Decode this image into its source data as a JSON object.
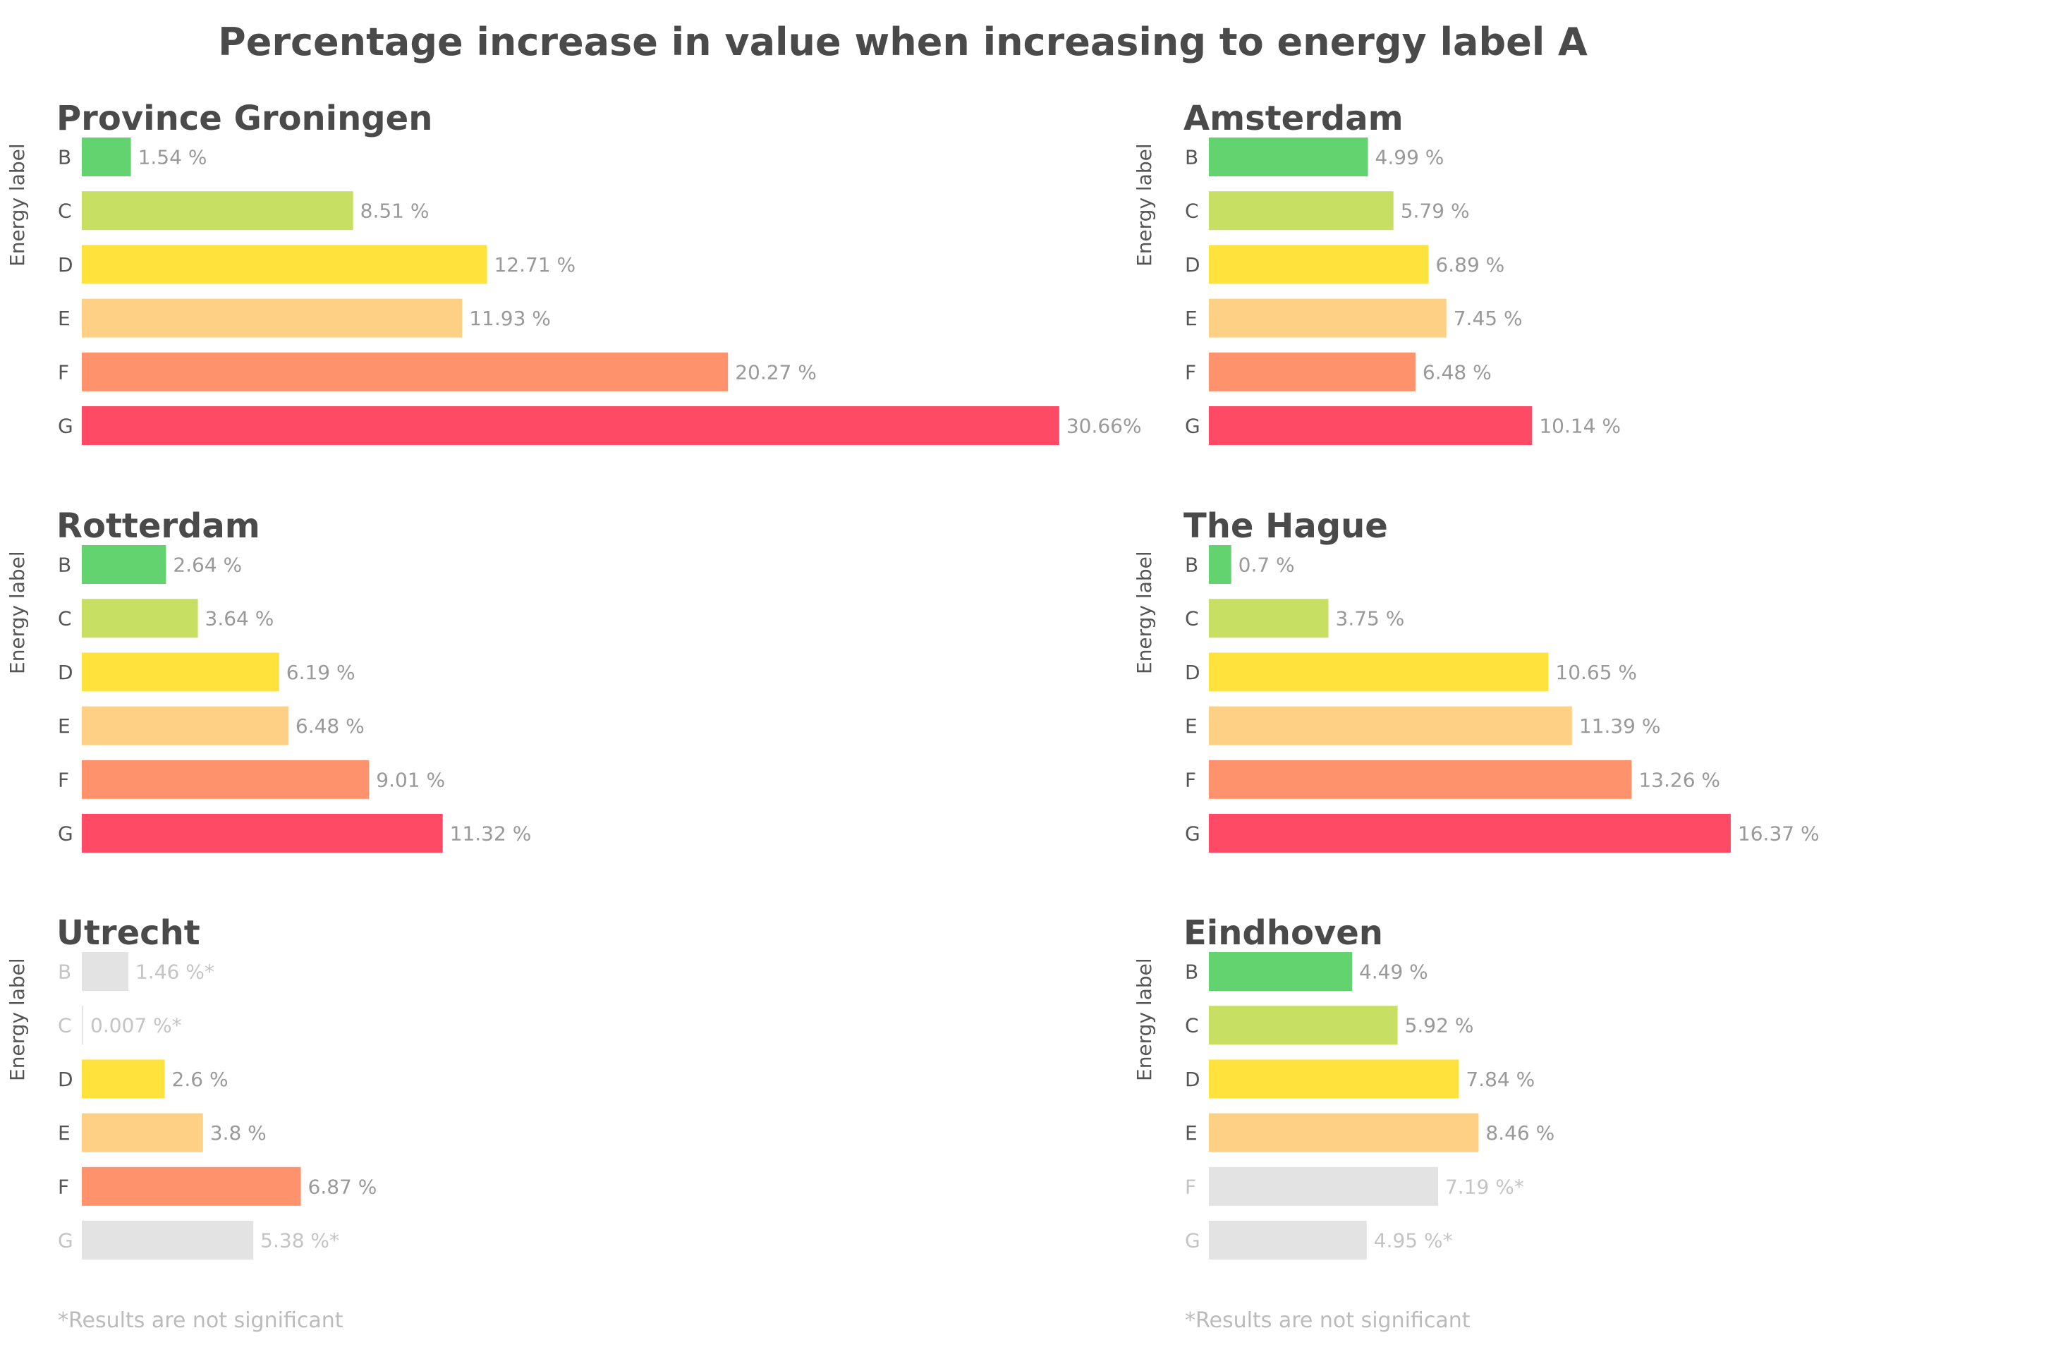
{
  "chart_data": {
    "type": "bar",
    "orientation": "horizontal",
    "title": "Percentage increase in value when increasing to energy label A",
    "ylabel": "Energy label",
    "categories": [
      "B",
      "C",
      "D",
      "E",
      "F",
      "G"
    ],
    "colors": {
      "B": "#63d36f",
      "C": "#c7df63",
      "D": "#ffe23c",
      "E": "#fdd086",
      "F": "#fe926d",
      "G": "#fe4a65",
      "not_significant": "#e3e3e3",
      "label": "#999999",
      "label_not_significant": "#c4c4c4",
      "cat_text": "#555555",
      "cat_not_significant": "#c4c4c4"
    },
    "panels": [
      {
        "id": "groningen",
        "title": "Province Groningen",
        "values": [
          1.54,
          8.51,
          12.71,
          11.93,
          20.27,
          30.66
        ],
        "value_labels": [
          "1.54 %",
          "8.51 %",
          "12.71 %",
          "11.93 %",
          "20.27 %",
          "30.66%"
        ],
        "significant": [
          true,
          true,
          true,
          true,
          true,
          true
        ]
      },
      {
        "id": "amsterdam",
        "title": "Amsterdam",
        "values": [
          4.99,
          5.79,
          6.89,
          7.45,
          6.48,
          10.14
        ],
        "value_labels": [
          "4.99 %",
          "5.79 %",
          "6.89 %",
          "7.45 %",
          "6.48 %",
          "10.14 %"
        ],
        "significant": [
          true,
          true,
          true,
          true,
          true,
          true
        ]
      },
      {
        "id": "rotterdam",
        "title": "Rotterdam",
        "values": [
          2.64,
          3.64,
          6.19,
          6.48,
          9.01,
          11.32
        ],
        "value_labels": [
          "2.64 %",
          "3.64 %",
          "6.19 %",
          "6.48 %",
          "9.01 %",
          "11.32 %"
        ],
        "significant": [
          true,
          true,
          true,
          true,
          true,
          true
        ]
      },
      {
        "id": "the-hague",
        "title": "The Hague",
        "values": [
          0.7,
          3.75,
          10.65,
          11.39,
          13.26,
          16.37
        ],
        "value_labels": [
          "0.7 %",
          "3.75 %",
          "10.65 %",
          "11.39 %",
          "13.26 %",
          "16.37 %"
        ],
        "significant": [
          true,
          true,
          true,
          true,
          true,
          true
        ]
      },
      {
        "id": "utrecht",
        "title": "Utrecht",
        "values": [
          1.46,
          0.007,
          2.6,
          3.8,
          6.87,
          5.38
        ],
        "value_labels": [
          "1.46 %*",
          "0.007 %*",
          "2.6 %",
          "3.8 %",
          "6.87 %",
          "5.38 %*"
        ],
        "significant": [
          false,
          false,
          true,
          true,
          true,
          false
        ]
      },
      {
        "id": "eindhoven",
        "title": "Eindhoven",
        "values": [
          4.49,
          5.92,
          7.84,
          8.46,
          7.19,
          4.95
        ],
        "value_labels": [
          "4.49 %",
          "5.92 %",
          "7.84 %",
          "8.46 %",
          "7.19 %*",
          "4.95 %*"
        ],
        "significant": [
          true,
          true,
          true,
          true,
          false,
          false
        ]
      }
    ],
    "footnote": "*Results are not significant"
  }
}
